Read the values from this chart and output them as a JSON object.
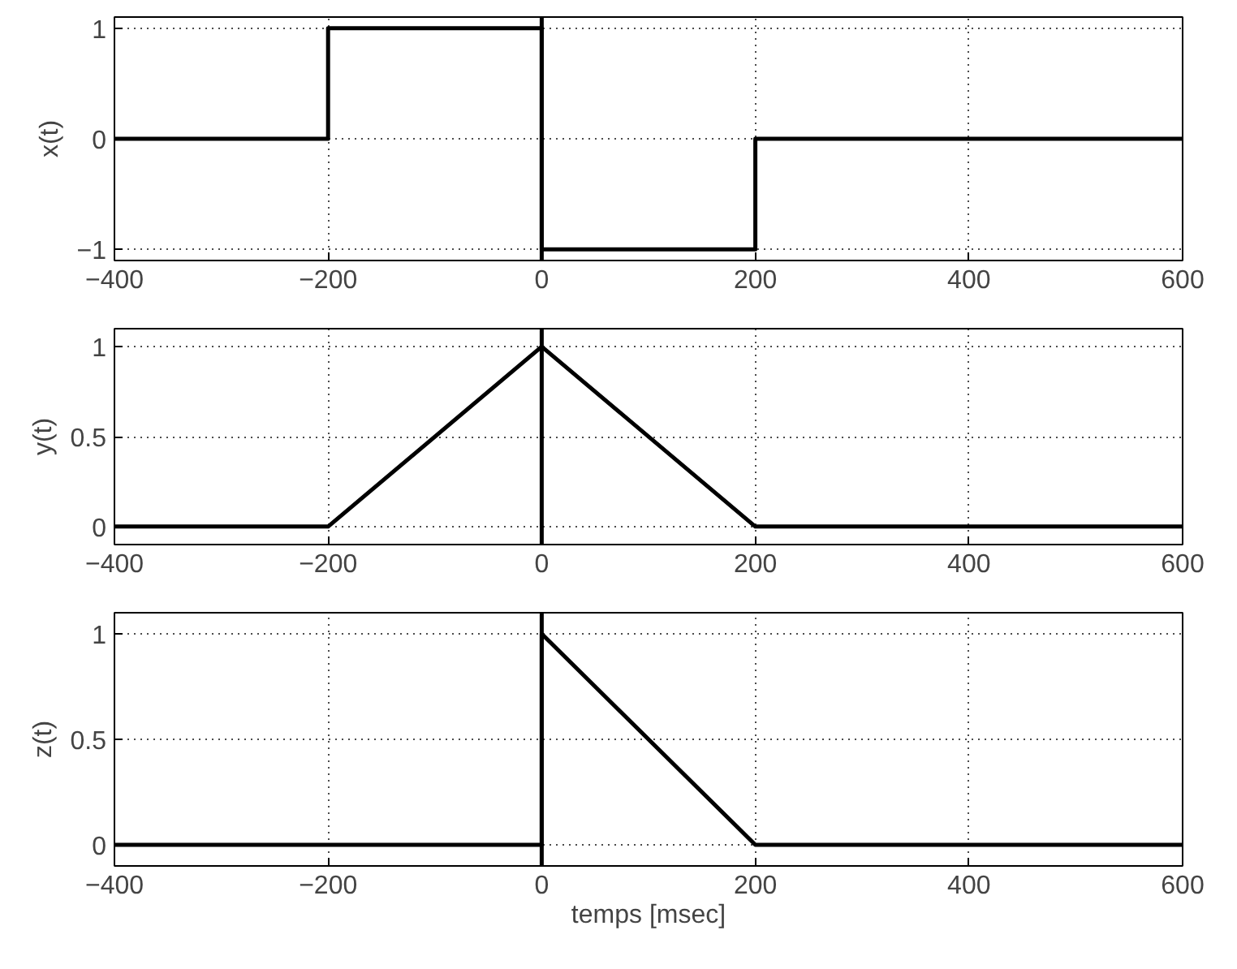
{
  "chart_data": [
    {
      "type": "line",
      "ylabel": "x(t)",
      "xlim": [
        -400,
        600
      ],
      "ylim": [
        -1.1,
        1.1
      ],
      "xticks": [
        -400,
        -200,
        0,
        200,
        400,
        600
      ],
      "yticks": [
        -1,
        0,
        1
      ],
      "grid": true,
      "series": [
        {
          "color": "#000000",
          "x": [
            -400,
            -200,
            -200,
            0,
            0,
            200,
            200,
            600
          ],
          "values": [
            0,
            0,
            1,
            1,
            -1,
            -1,
            0,
            0
          ]
        }
      ],
      "ref_lines": [
        {
          "axis": "x",
          "value": 0,
          "color": "#000000"
        }
      ]
    },
    {
      "type": "line",
      "ylabel": "y(t)",
      "xlim": [
        -400,
        600
      ],
      "ylim": [
        -0.1,
        1.1
      ],
      "xticks": [
        -400,
        -200,
        0,
        200,
        400,
        600
      ],
      "yticks": [
        0,
        0.5,
        1
      ],
      "grid": true,
      "series": [
        {
          "color": "#000000",
          "x": [
            -400,
            -200,
            0,
            200,
            600
          ],
          "values": [
            0,
            0,
            1,
            0,
            0
          ]
        }
      ],
      "ref_lines": [
        {
          "axis": "x",
          "value": 0,
          "color": "#000000"
        }
      ]
    },
    {
      "type": "line",
      "ylabel": "z(t)",
      "xlabel": "temps [msec]",
      "xlim": [
        -400,
        600
      ],
      "ylim": [
        -0.1,
        1.1
      ],
      "xticks": [
        -400,
        -200,
        0,
        200,
        400,
        600
      ],
      "yticks": [
        0,
        0.5,
        1
      ],
      "grid": true,
      "series": [
        {
          "color": "#000000",
          "x": [
            -400,
            0,
            0,
            200,
            600
          ],
          "values": [
            0,
            0,
            1,
            0,
            0
          ]
        }
      ],
      "ref_lines": [
        {
          "axis": "x",
          "value": 0,
          "color": "#000000"
        }
      ]
    }
  ]
}
